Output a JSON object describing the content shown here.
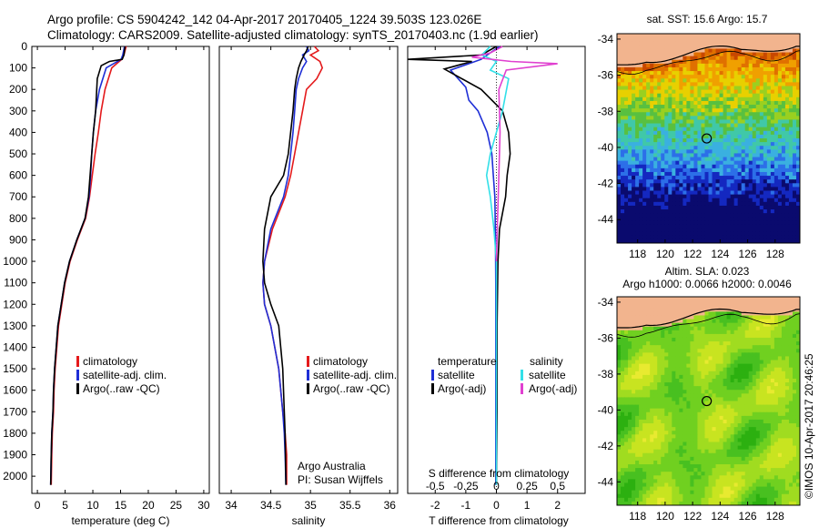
{
  "header": {
    "line1": "Argo profile: CS 5904242_142 04-Apr-2017 20170405_1224 39.503S 123.026E",
    "line2": "Climatology: CARS2009. Satellite-adjusted climatology: synTS_20170403.nc (1.9d earlier)"
  },
  "colors": {
    "climatology": "#e41a1c",
    "satellite": "#1f2fd6",
    "argo": "#000000",
    "salinity_satellite": "#33e0e8",
    "salinity_argo": "#e040d0"
  },
  "chart_data": [
    {
      "id": "temperature-profile",
      "type": "line",
      "xlabel": "temperature (deg C)",
      "ylabel": "",
      "xlim": [
        -1,
        31
      ],
      "ylim": [
        2080,
        0
      ],
      "xticks": [
        0,
        5,
        10,
        15,
        20,
        25,
        30
      ],
      "yticks": [
        0,
        100,
        200,
        300,
        400,
        500,
        600,
        700,
        800,
        900,
        1000,
        1100,
        1200,
        1300,
        1400,
        1500,
        1600,
        1700,
        1800,
        1900,
        2000
      ],
      "legend": [
        "climatology",
        "satellite-adj. clim.",
        "Argo(..raw -QC)"
      ],
      "series": [
        {
          "name": "climatology",
          "color": "#e41a1c",
          "x": [
            16.0,
            15.6,
            15.2,
            13.4,
            12.2,
            11.5,
            11.0,
            10.4,
            9.9,
            9.4,
            8.7,
            7.2,
            5.9,
            5.0,
            3.8,
            3.2,
            3.0,
            2.9,
            2.7,
            2.6,
            2.5
          ],
          "y": [
            0,
            40,
            60,
            100,
            200,
            300,
            400,
            500,
            600,
            700,
            800,
            900,
            1000,
            1100,
            1300,
            1500,
            1600,
            1700,
            1800,
            1900,
            2040
          ]
        },
        {
          "name": "satellite-adj. clim.",
          "color": "#1f2fd6",
          "x": [
            15.7,
            15.4,
            15.1,
            12.4,
            11.2,
            10.5,
            10.1,
            9.8,
            9.6,
            9.3,
            8.6,
            7.1,
            5.8,
            4.9,
            3.7,
            3.1,
            2.9,
            2.8,
            2.6,
            2.5,
            2.4
          ],
          "y": [
            0,
            40,
            60,
            100,
            200,
            300,
            400,
            500,
            600,
            700,
            800,
            900,
            1000,
            1100,
            1300,
            1500,
            1600,
            1700,
            1800,
            1900,
            2040
          ]
        },
        {
          "name": "Argo(..raw -QC)",
          "color": "#000000",
          "x": [
            15.8,
            15.6,
            15.3,
            13.0,
            12.6,
            11.5,
            10.8,
            10.5,
            10.1,
            9.8,
            9.5,
            9.2,
            8.6,
            7.1,
            5.8,
            4.9,
            3.7,
            3.1,
            2.9,
            2.8,
            2.6,
            2.5,
            2.4
          ],
          "y": [
            0,
            40,
            60,
            70,
            75,
            90,
            150,
            300,
            400,
            500,
            600,
            700,
            800,
            900,
            1000,
            1100,
            1300,
            1500,
            1600,
            1700,
            1800,
            1900,
            2040
          ]
        }
      ]
    },
    {
      "id": "salinity-profile",
      "type": "line",
      "xlabel": "salinity",
      "ylabel": "",
      "xlim": [
        33.85,
        36.1
      ],
      "ylim": [
        2080,
        0
      ],
      "xticks": [
        34,
        34.5,
        35,
        35.5,
        36
      ],
      "xtick_labels": [
        "34",
        "34.5",
        "35",
        "35.5",
        "36"
      ],
      "legend": [
        "climatology",
        "satellite-adj. clim.",
        "Argo(..raw -QC)"
      ],
      "annotation": [
        "Argo Australia",
        "PI: Susan Wijffels"
      ],
      "series": [
        {
          "name": "climatology",
          "color": "#e41a1c",
          "x": [
            35.05,
            35.1,
            35.0,
            35.12,
            35.15,
            35.08,
            34.95,
            34.9,
            34.85,
            34.8,
            34.75,
            34.68,
            34.52,
            34.42,
            34.4,
            34.42,
            34.5,
            34.6,
            34.65,
            34.68,
            34.7,
            34.7
          ],
          "y": [
            0,
            20,
            40,
            70,
            100,
            150,
            200,
            300,
            400,
            500,
            600,
            700,
            850,
            1000,
            1100,
            1200,
            1300,
            1500,
            1700,
            1800,
            1900,
            2040
          ]
        },
        {
          "name": "satellite-adj. clim.",
          "color": "#1f2fd6",
          "x": [
            34.95,
            34.98,
            34.9,
            34.95,
            34.9,
            34.85,
            34.82,
            34.8,
            34.78,
            34.75,
            34.72,
            34.66,
            34.5,
            34.42,
            34.4,
            34.42,
            34.5,
            34.6,
            34.65,
            34.67,
            34.68,
            34.69
          ],
          "y": [
            0,
            20,
            40,
            70,
            100,
            150,
            200,
            300,
            400,
            500,
            600,
            700,
            850,
            1000,
            1100,
            1200,
            1300,
            1500,
            1700,
            1800,
            1900,
            2040
          ]
        },
        {
          "name": "Argo(..raw -QC)",
          "color": "#000000",
          "x": [
            34.97,
            34.95,
            34.92,
            34.88,
            34.85,
            34.82,
            34.8,
            34.78,
            34.75,
            34.72,
            34.66,
            34.5,
            34.42,
            34.4,
            34.42,
            34.5,
            34.6,
            34.65,
            34.67,
            34.68,
            34.69
          ],
          "y": [
            0,
            20,
            40,
            70,
            100,
            150,
            200,
            300,
            400,
            500,
            600,
            700,
            850,
            1000,
            1100,
            1200,
            1300,
            1500,
            1700,
            1800,
            2040
          ]
        }
      ]
    },
    {
      "id": "difference-profile",
      "type": "line",
      "xlabel": "T difference from climatology",
      "x2label": "S difference from climatology",
      "xlim": [
        -2.9,
        2.9
      ],
      "ylim": [
        2080,
        0
      ],
      "xticks": [
        -2,
        -1,
        0,
        1,
        2
      ],
      "x2ticks": [
        -0.5,
        -0.25,
        0,
        0.25,
        0.5
      ],
      "x2tick_labels": [
        "-0.5",
        "-0.25",
        "0",
        "0.25",
        "0.5"
      ],
      "x2lim": [
        -0.725,
        0.725
      ],
      "legend_left_title": "temperature",
      "legend_right_title": "salinity",
      "legend": [
        "satellite",
        "Argo(-adj)",
        "satellite",
        "Argo(-adj)"
      ],
      "series": [
        {
          "name": "satellite",
          "group": "temperature",
          "color": "#1f2fd6",
          "axis": "T",
          "x": [
            0.1,
            -0.3,
            -0.5,
            -1.5,
            -1.0,
            -0.9,
            -0.6,
            -0.3,
            -0.15,
            -0.1,
            -0.05,
            -0.03,
            -0.02,
            -0.02,
            -0.02,
            -0.02
          ],
          "y": [
            0,
            40,
            60,
            110,
            190,
            250,
            300,
            400,
            500,
            600,
            700,
            900,
            1100,
            1400,
            1800,
            2040
          ]
        },
        {
          "name": "Argo(-adj)",
          "group": "temperature",
          "color": "#000000",
          "axis": "T",
          "x": [
            0.0,
            -0.5,
            -2.9,
            -0.8,
            -1.7,
            -0.5,
            0.2,
            0.4,
            0.45,
            0.35,
            0.3,
            0.1,
            0.05,
            0.02,
            0.02,
            0.0
          ],
          "y": [
            0,
            40,
            60,
            70,
            105,
            200,
            300,
            400,
            500,
            600,
            700,
            850,
            1000,
            1300,
            1700,
            2040
          ]
        },
        {
          "name": "satellite",
          "group": "salinity",
          "color": "#33e0e8",
          "axis": "S",
          "x": [
            -0.05,
            -0.12,
            0.0,
            -0.05,
            0.1,
            0.05,
            0.0,
            -0.05,
            -0.08,
            -0.05,
            -0.02,
            0.0,
            0.0,
            0.0
          ],
          "y": [
            0,
            40,
            70,
            110,
            150,
            300,
            400,
            500,
            600,
            700,
            850,
            1000,
            1500,
            2040
          ]
        },
        {
          "name": "Argo(-adj)",
          "group": "salinity",
          "color": "#e040d0",
          "axis": "S",
          "x": [
            0.05,
            -0.05,
            -0.2,
            0.12,
            0.5,
            0.08,
            0.02,
            0.03,
            0.02,
            0.01,
            0.0
          ],
          "y": [
            0,
            30,
            50,
            70,
            80,
            110,
            200,
            400,
            600,
            800,
            1000
          ]
        }
      ]
    },
    {
      "id": "sst-map",
      "type": "heatmap",
      "title": "sat. SST: 15.6  Argo: 15.7",
      "xticks": [
        118,
        120,
        122,
        124,
        126,
        128
      ],
      "yticks": [
        -34,
        -36,
        -38,
        -40,
        -42,
        -44
      ],
      "xlim": [
        116.5,
        129.8
      ],
      "ylim": [
        -45.3,
        -33.7
      ],
      "marker": {
        "lon": 123.026,
        "lat": -39.503
      },
      "palette": [
        "#0a0a6e",
        "#1428c0",
        "#2c6fe8",
        "#3ab0e0",
        "#40c8a8",
        "#58c040",
        "#9ad020",
        "#e8d000",
        "#f0a000",
        "#e07000",
        "#c84800"
      ]
    },
    {
      "id": "sla-map",
      "type": "heatmap",
      "title_lines": [
        "Altim. SLA: 0.023",
        "Argo h1000: 0.0066  h2000: 0.0046"
      ],
      "xticks": [
        118,
        120,
        122,
        124,
        126,
        128
      ],
      "yticks": [
        -34,
        -36,
        -38,
        -40,
        -42,
        -44
      ],
      "xlim": [
        116.5,
        129.8
      ],
      "ylim": [
        -45.3,
        -33.7
      ],
      "marker": {
        "lon": 123.026,
        "lat": -39.503
      },
      "palette": [
        "#2cb010",
        "#48c020",
        "#70d020",
        "#a0dc20",
        "#c8e420",
        "#e8ea30"
      ]
    }
  ],
  "credit": "©IMOS 10-Apr-2017 20:46:25"
}
